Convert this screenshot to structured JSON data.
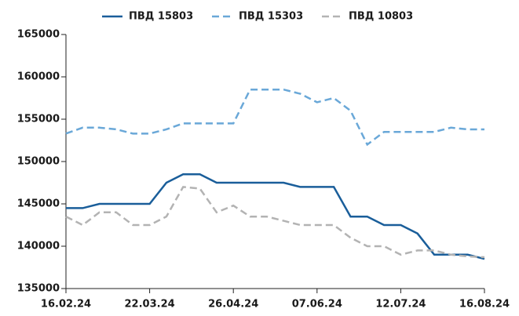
{
  "chart_data": {
    "type": "line",
    "categories": [
      "16.02.24",
      null,
      null,
      null,
      null,
      "22.03.24",
      null,
      null,
      null,
      null,
      "26.04.24",
      null,
      null,
      null,
      null,
      "07.06.24",
      null,
      null,
      null,
      null,
      "12.07.24",
      null,
      null,
      null,
      null,
      "16.08.24"
    ],
    "series": [
      {
        "name": "ПВД 15803",
        "color": "#1a5e9a",
        "dashed": false,
        "values": [
          144500,
          144500,
          145000,
          145000,
          145000,
          145000,
          147500,
          148500,
          148500,
          147500,
          147500,
          147500,
          147500,
          147500,
          147000,
          147000,
          147000,
          143500,
          143500,
          142500,
          142500,
          141500,
          139000,
          139000,
          139000,
          138500
        ]
      },
      {
        "name": "ПВД 15303",
        "color": "#6aa8d8",
        "dashed": true,
        "values": [
          153300,
          154000,
          154000,
          153800,
          153300,
          153300,
          153800,
          154500,
          154500,
          154500,
          154500,
          158500,
          158500,
          158500,
          158000,
          157000,
          157500,
          156000,
          152000,
          153500,
          153500,
          153500,
          153500,
          154000,
          153800,
          153800
        ]
      },
      {
        "name": "ПВД 10803",
        "color": "#b3b3b3",
        "dashed": true,
        "values": [
          143500,
          142500,
          144000,
          144000,
          142500,
          142500,
          143500,
          147000,
          146800,
          144000,
          144800,
          143500,
          143500,
          143000,
          142500,
          142500,
          142500,
          141000,
          140000,
          140000,
          139000,
          139500,
          139500,
          139000,
          138800,
          138700
        ]
      }
    ],
    "ylim": [
      135000,
      165000
    ],
    "yticks": [
      135000,
      140000,
      145000,
      150000,
      155000,
      160000,
      165000
    ],
    "grid": false,
    "legend": "top"
  }
}
